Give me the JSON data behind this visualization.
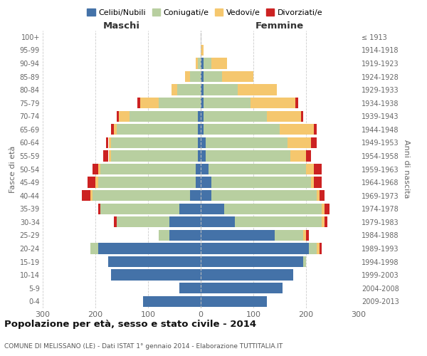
{
  "age_groups": [
    "0-4",
    "5-9",
    "10-14",
    "15-19",
    "20-24",
    "25-29",
    "30-34",
    "35-39",
    "40-44",
    "45-49",
    "50-54",
    "55-59",
    "60-64",
    "65-69",
    "70-74",
    "75-79",
    "80-84",
    "85-89",
    "90-94",
    "95-99",
    "100+"
  ],
  "birth_years": [
    "2009-2013",
    "2004-2008",
    "1999-2003",
    "1994-1998",
    "1989-1993",
    "1984-1988",
    "1979-1983",
    "1974-1978",
    "1969-1973",
    "1964-1968",
    "1959-1963",
    "1954-1958",
    "1949-1953",
    "1944-1948",
    "1939-1943",
    "1934-1938",
    "1929-1933",
    "1924-1928",
    "1919-1923",
    "1914-1918",
    "≤ 1913"
  ],
  "male": {
    "celibe": [
      110,
      40,
      170,
      175,
      195,
      60,
      60,
      40,
      20,
      10,
      10,
      5,
      5,
      5,
      5,
      0,
      0,
      0,
      0,
      0,
      0
    ],
    "coniugato": [
      0,
      0,
      0,
      0,
      15,
      20,
      100,
      150,
      185,
      185,
      180,
      165,
      165,
      155,
      130,
      80,
      45,
      20,
      5,
      0,
      0
    ],
    "vedovo": [
      0,
      0,
      0,
      0,
      0,
      0,
      0,
      0,
      5,
      5,
      5,
      5,
      5,
      5,
      20,
      35,
      10,
      10,
      5,
      0,
      0
    ],
    "divorziato": [
      0,
      0,
      0,
      0,
      0,
      0,
      5,
      5,
      15,
      15,
      10,
      10,
      5,
      5,
      5,
      5,
      0,
      0,
      0,
      0,
      0
    ]
  },
  "female": {
    "nubile": [
      125,
      155,
      175,
      195,
      205,
      140,
      65,
      45,
      20,
      20,
      15,
      10,
      10,
      5,
      5,
      5,
      5,
      5,
      5,
      0,
      0
    ],
    "coniugata": [
      0,
      0,
      0,
      5,
      15,
      55,
      165,
      185,
      200,
      190,
      185,
      160,
      155,
      145,
      120,
      90,
      65,
      35,
      15,
      0,
      0
    ],
    "vedova": [
      0,
      0,
      0,
      0,
      5,
      5,
      5,
      5,
      5,
      5,
      15,
      30,
      45,
      65,
      65,
      85,
      75,
      60,
      30,
      5,
      0
    ],
    "divorziata": [
      0,
      0,
      0,
      0,
      5,
      5,
      5,
      10,
      10,
      15,
      15,
      10,
      10,
      5,
      5,
      5,
      0,
      0,
      0,
      0,
      0
    ]
  },
  "colors": {
    "celibe": "#4472a8",
    "coniugato": "#b8cfa0",
    "vedovo": "#f5c76e",
    "divorziato": "#cc2222"
  },
  "title": "Popolazione per età, sesso e stato civile - 2014",
  "subtitle": "COMUNE DI MELISSANO (LE) - Dati ISTAT 1° gennaio 2014 - Elaborazione TUTTITALIA.IT",
  "xlabel_left": "Maschi",
  "xlabel_right": "Femmine",
  "ylabel_left": "Fasce di età",
  "ylabel_right": "Anni di nascita",
  "xlim": 300,
  "legend_labels": [
    "Celibi/Nubili",
    "Coniugati/e",
    "Vedovi/e",
    "Divorziati/e"
  ]
}
